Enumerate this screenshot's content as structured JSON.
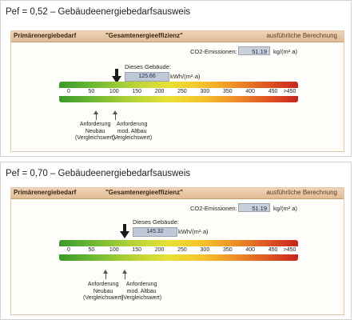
{
  "colors": {
    "card_border": "#e3c7a7",
    "header_bar": "#e2bb94",
    "value_box": "#bfc8d6",
    "arrow": "#1b1b1b",
    "scale_green": "#3a9a2d",
    "scale_yellow": "#e9e136",
    "scale_red": "#c8251e"
  },
  "icons": {
    "pointer": "down-arrow-icon",
    "requirement": "up-arrow-icon"
  },
  "panels": [
    {
      "caption": "Pef = 0,52 – Gebäudeenergiebedarfsausweis",
      "header": {
        "left": "Primärenergiebedarf",
        "center": "\"Gesamtenergieeffizienz\"",
        "right": "ausführliche Berechnung"
      },
      "co2": {
        "label": "CO2-Emissionen:",
        "value": "51.19",
        "unit": "kg/(m² a)"
      },
      "building": {
        "label": "Dieses Gebäude:",
        "value": "125.66",
        "unit": "kWh/(m²·a)",
        "numeric_value": 125.66
      },
      "scale_ticks": [
        "0",
        "50",
        "100",
        "150",
        "200",
        "250",
        "300",
        "350",
        "400",
        "450",
        ">450"
      ],
      "requirements": [
        {
          "value": 110,
          "label_line1": "Anforderung",
          "label_line2": "Neubau",
          "label_line3": "(Vergleichswert)"
        },
        {
          "value": 148,
          "label_line1": "Anforderung",
          "label_line2": "mod. Altbau",
          "label_line3": "(Vergleichswert)"
        }
      ]
    },
    {
      "caption": "Pef = 0,70 – Gebäudeenergiebedarfsausweis",
      "header": {
        "left": "Primärenergiebedarf",
        "center": "\"Gesamtenergieeffizienz\"",
        "right": "ausführliche Berechnung"
      },
      "co2": {
        "label": "CO2-Emissionen:",
        "value": "51.19",
        "unit": "kg/(m² a)"
      },
      "building": {
        "label": "Dieses Gebäude:",
        "value": "145.32",
        "unit": "kWh/(m²·a)",
        "numeric_value": 145.32
      },
      "scale_ticks": [
        "0",
        "50",
        "100",
        "150",
        "200",
        "250",
        "300",
        "350",
        "400",
        "450",
        ">450"
      ],
      "requirements": [
        {
          "value": 110,
          "label_line1": "Anforderung",
          "label_line2": "Neubau",
          "label_line3": "(Vergleichswert)"
        },
        {
          "value": 148,
          "label_line1": "Anforderung",
          "label_line2": "mod. Altbau",
          "label_line3": "(Vergleichswert)"
        }
      ]
    }
  ]
}
